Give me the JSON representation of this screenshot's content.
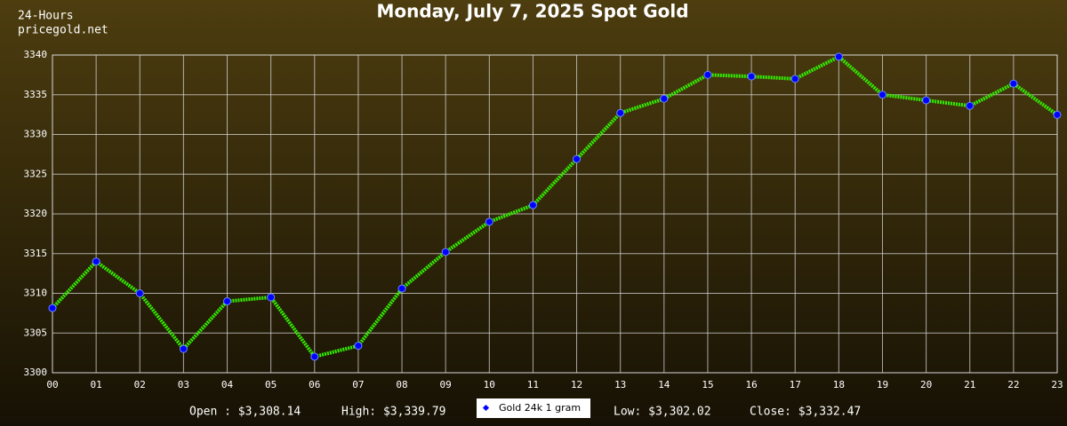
{
  "chart_data": {
    "type": "line",
    "title": "Monday, July 7, 2025 Spot Gold",
    "corner_labels": [
      "24-Hours",
      "pricegold.net"
    ],
    "categories": [
      "00",
      "01",
      "02",
      "03",
      "04",
      "05",
      "06",
      "07",
      "08",
      "09",
      "10",
      "11",
      "12",
      "13",
      "14",
      "15",
      "16",
      "17",
      "18",
      "19",
      "20",
      "21",
      "22",
      "23"
    ],
    "series": [
      {
        "name": "Gold 24k 1 gram",
        "color": "#33ee00",
        "marker_color": "#0000ff",
        "values": [
          3308.14,
          3314.0,
          3310.0,
          3303.0,
          3309.0,
          3309.5,
          3302.02,
          3303.4,
          3310.6,
          3315.2,
          3319.0,
          3321.1,
          3326.9,
          3332.7,
          3334.5,
          3337.5,
          3337.3,
          3337.0,
          3339.79,
          3335.0,
          3334.3,
          3333.6,
          3336.4,
          3332.47
        ]
      }
    ],
    "ylim": [
      3300,
      3340
    ],
    "yticks": [
      3300,
      3305,
      3310,
      3315,
      3320,
      3325,
      3330,
      3335,
      3340
    ],
    "grid": true,
    "summary_left": [
      "Open : $3,308.14",
      "High: $3,339.79"
    ],
    "summary_right": [
      "Low: $3,302.02",
      "Close: $3,332.47"
    ],
    "legend": "bottom"
  }
}
